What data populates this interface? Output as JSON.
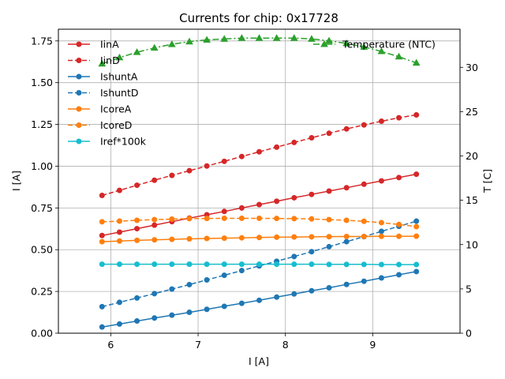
{
  "chart_data": {
    "type": "line",
    "title": "Currents for chip: 0x17728",
    "xlabel": "I [A]",
    "ylabel": "I [A]",
    "y2label": "T [C]",
    "xlim": [
      5.4,
      10.0
    ],
    "ylim": [
      0.0,
      1.82
    ],
    "y2lim": [
      0,
      34.3
    ],
    "grid": true,
    "xticks": [
      6,
      7,
      8,
      9
    ],
    "yticks": [
      0.0,
      0.25,
      0.5,
      0.75,
      1.0,
      1.25,
      1.5,
      1.75
    ],
    "y2ticks": [
      0,
      5,
      10,
      15,
      20,
      25,
      30
    ],
    "x": [
      5.9,
      6.1,
      6.3,
      6.5,
      6.7,
      6.9,
      7.1,
      7.3,
      7.5,
      7.7,
      7.9,
      8.1,
      8.3,
      8.5,
      8.7,
      8.9,
      9.1,
      9.3,
      9.5
    ],
    "legend_left_position": "upper-left",
    "legend_right_position": "upper-right",
    "series": [
      {
        "name": "IinA",
        "axis": "left",
        "color": "#d62728",
        "dash": "solid",
        "marker": "circle",
        "values": [
          0.585,
          0.605,
          0.626,
          0.647,
          0.668,
          0.689,
          0.709,
          0.729,
          0.75,
          0.77,
          0.79,
          0.811,
          0.831,
          0.851,
          0.871,
          0.892,
          0.912,
          0.932,
          0.952
        ]
      },
      {
        "name": "IinD",
        "axis": "left",
        "color": "#d62728",
        "dash": "dashed",
        "marker": "circle",
        "values": [
          0.825,
          0.855,
          0.886,
          0.916,
          0.945,
          0.973,
          1.001,
          1.029,
          1.058,
          1.086,
          1.114,
          1.142,
          1.17,
          1.197,
          1.223,
          1.247,
          1.269,
          1.29,
          1.307
        ]
      },
      {
        "name": "IshuntA",
        "axis": "left",
        "color": "#1f77b4",
        "dash": "solid",
        "marker": "circle",
        "values": [
          0.037,
          0.055,
          0.073,
          0.091,
          0.108,
          0.125,
          0.143,
          0.161,
          0.179,
          0.197,
          0.216,
          0.235,
          0.254,
          0.272,
          0.292,
          0.311,
          0.331,
          0.35,
          0.369
        ]
      },
      {
        "name": "IshuntD",
        "axis": "left",
        "color": "#1f77b4",
        "dash": "dashed",
        "marker": "circle",
        "values": [
          0.159,
          0.185,
          0.211,
          0.237,
          0.264,
          0.291,
          0.319,
          0.347,
          0.375,
          0.403,
          0.431,
          0.459,
          0.488,
          0.518,
          0.548,
          0.578,
          0.61,
          0.64,
          0.671
        ]
      },
      {
        "name": "IcoreA",
        "axis": "left",
        "color": "#ff7f0e",
        "dash": "solid",
        "marker": "circle",
        "values": [
          0.548,
          0.552,
          0.556,
          0.559,
          0.562,
          0.565,
          0.567,
          0.569,
          0.571,
          0.573,
          0.575,
          0.576,
          0.577,
          0.578,
          0.579,
          0.579,
          0.58,
          0.58,
          0.581
        ]
      },
      {
        "name": "IcoreD",
        "axis": "left",
        "color": "#ff7f0e",
        "dash": "dashed",
        "marker": "circle",
        "values": [
          0.667,
          0.671,
          0.676,
          0.68,
          0.683,
          0.686,
          0.687,
          0.688,
          0.688,
          0.688,
          0.687,
          0.686,
          0.684,
          0.68,
          0.676,
          0.67,
          0.662,
          0.651,
          0.638
        ]
      },
      {
        "name": "Iref*100k",
        "axis": "left",
        "color": "#17becf",
        "dash": "solid",
        "marker": "circle",
        "values": [
          0.413,
          0.413,
          0.413,
          0.413,
          0.413,
          0.413,
          0.413,
          0.413,
          0.413,
          0.413,
          0.413,
          0.413,
          0.413,
          0.412,
          0.412,
          0.412,
          0.411,
          0.411,
          0.411
        ]
      },
      {
        "name": "Temperature (NTC)",
        "axis": "right",
        "color": "#2ca02c",
        "dash": "dashdot",
        "marker": "triangle",
        "values": [
          30.4,
          31.1,
          31.7,
          32.2,
          32.6,
          32.9,
          33.1,
          33.2,
          33.3,
          33.3,
          33.3,
          33.3,
          33.2,
          33.0,
          32.7,
          32.3,
          31.8,
          31.2,
          30.5
        ]
      }
    ]
  }
}
